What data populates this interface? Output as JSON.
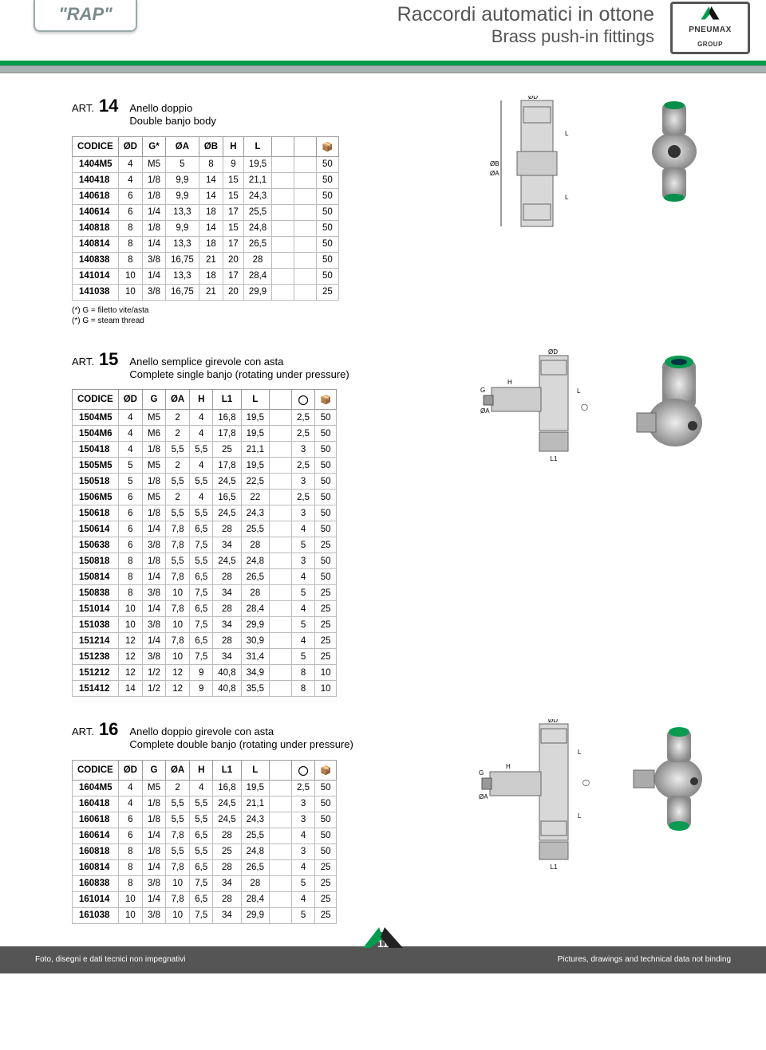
{
  "header": {
    "series": "\"RAP\"",
    "title_it": "Raccordi automatici in ottone",
    "title_en": "Brass push-in fittings",
    "brand_top": "PNEUMAX",
    "brand_bot": "GROUP"
  },
  "art14": {
    "label": "ART.",
    "num": "14",
    "desc_it": "Anello doppio",
    "desc_en": "Double banjo body",
    "cols": [
      "CODICE",
      "ØD",
      "G*",
      "ØA",
      "ØB",
      "H",
      "L",
      "",
      "",
      "📦"
    ],
    "rows": [
      [
        "1404M5",
        "4",
        "M5",
        "5",
        "8",
        "9",
        "19,5",
        "",
        "",
        "50"
      ],
      [
        "140418",
        "4",
        "1/8",
        "9,9",
        "14",
        "15",
        "21,1",
        "",
        "",
        "50"
      ],
      [
        "140618",
        "6",
        "1/8",
        "9,9",
        "14",
        "15",
        "24,3",
        "",
        "",
        "50"
      ],
      [
        "140614",
        "6",
        "1/4",
        "13,3",
        "18",
        "17",
        "25,5",
        "",
        "",
        "50"
      ],
      [
        "140818",
        "8",
        "1/8",
        "9,9",
        "14",
        "15",
        "24,8",
        "",
        "",
        "50"
      ],
      [
        "140814",
        "8",
        "1/4",
        "13,3",
        "18",
        "17",
        "26,5",
        "",
        "",
        "50"
      ],
      [
        "140838",
        "8",
        "3/8",
        "16,75",
        "21",
        "20",
        "28",
        "",
        "",
        "50"
      ],
      [
        "141014",
        "10",
        "1/4",
        "13,3",
        "18",
        "17",
        "28,4",
        "",
        "",
        "50"
      ],
      [
        "141038",
        "10",
        "3/8",
        "16,75",
        "21",
        "20",
        "29,9",
        "",
        "",
        "25"
      ]
    ],
    "note1": "(*) G = filetto vite/asta",
    "note2": "(*) G = steam thread"
  },
  "art15": {
    "label": "ART.",
    "num": "15",
    "desc_it": "Anello semplice girevole con asta",
    "desc_en": "Complete single banjo (rotating under pressure)",
    "cols": [
      "CODICE",
      "ØD",
      "G",
      "ØA",
      "H",
      "L1",
      "L",
      "",
      "◯",
      "📦"
    ],
    "rows": [
      [
        "1504M5",
        "4",
        "M5",
        "2",
        "4",
        "16,8",
        "19,5",
        "",
        "2,5",
        "50"
      ],
      [
        "1504M6",
        "4",
        "M6",
        "2",
        "4",
        "17,8",
        "19,5",
        "",
        "2,5",
        "50"
      ],
      [
        "150418",
        "4",
        "1/8",
        "5,5",
        "5,5",
        "25",
        "21,1",
        "",
        "3",
        "50"
      ],
      [
        "1505M5",
        "5",
        "M5",
        "2",
        "4",
        "17,8",
        "19,5",
        "",
        "2,5",
        "50"
      ],
      [
        "150518",
        "5",
        "1/8",
        "5,5",
        "5,5",
        "24,5",
        "22,5",
        "",
        "3",
        "50"
      ],
      [
        "1506M5",
        "6",
        "M5",
        "2",
        "4",
        "16,5",
        "22",
        "",
        "2,5",
        "50"
      ],
      [
        "150618",
        "6",
        "1/8",
        "5,5",
        "5,5",
        "24,5",
        "24,3",
        "",
        "3",
        "50"
      ],
      [
        "150614",
        "6",
        "1/4",
        "7,8",
        "6,5",
        "28",
        "25,5",
        "",
        "4",
        "50"
      ],
      [
        "150638",
        "6",
        "3/8",
        "7,8",
        "7,5",
        "34",
        "28",
        "",
        "5",
        "25"
      ],
      [
        "150818",
        "8",
        "1/8",
        "5,5",
        "5,5",
        "24,5",
        "24,8",
        "",
        "3",
        "50"
      ],
      [
        "150814",
        "8",
        "1/4",
        "7,8",
        "6,5",
        "28",
        "26,5",
        "",
        "4",
        "50"
      ],
      [
        "150838",
        "8",
        "3/8",
        "10",
        "7,5",
        "34",
        "28",
        "",
        "5",
        "25"
      ],
      [
        "151014",
        "10",
        "1/4",
        "7,8",
        "6,5",
        "28",
        "28,4",
        "",
        "4",
        "25"
      ],
      [
        "151038",
        "10",
        "3/8",
        "10",
        "7,5",
        "34",
        "29,9",
        "",
        "5",
        "25"
      ],
      [
        "151214",
        "12",
        "1/4",
        "7,8",
        "6,5",
        "28",
        "30,9",
        "",
        "4",
        "25"
      ],
      [
        "151238",
        "12",
        "3/8",
        "10",
        "7,5",
        "34",
        "31,4",
        "",
        "5",
        "25"
      ],
      [
        "151212",
        "12",
        "1/2",
        "12",
        "9",
        "40,8",
        "34,9",
        "",
        "8",
        "10"
      ],
      [
        "151412",
        "14",
        "1/2",
        "12",
        "9",
        "40,8",
        "35,5",
        "",
        "8",
        "10"
      ]
    ]
  },
  "art16": {
    "label": "ART.",
    "num": "16",
    "desc_it": "Anello doppio girevole con asta",
    "desc_en": "Complete double banjo (rotating under pressure)",
    "cols": [
      "CODICE",
      "ØD",
      "G",
      "ØA",
      "H",
      "L1",
      "L",
      "",
      "◯",
      "📦"
    ],
    "rows": [
      [
        "1604M5",
        "4",
        "M5",
        "2",
        "4",
        "16,8",
        "19,5",
        "",
        "2,5",
        "50"
      ],
      [
        "160418",
        "4",
        "1/8",
        "5,5",
        "5,5",
        "24,5",
        "21,1",
        "",
        "3",
        "50"
      ],
      [
        "160618",
        "6",
        "1/8",
        "5,5",
        "5,5",
        "24,5",
        "24,3",
        "",
        "3",
        "50"
      ],
      [
        "160614",
        "6",
        "1/4",
        "7,8",
        "6,5",
        "28",
        "25,5",
        "",
        "4",
        "50"
      ],
      [
        "160818",
        "8",
        "1/8",
        "5,5",
        "5,5",
        "25",
        "24,8",
        "",
        "3",
        "50"
      ],
      [
        "160814",
        "8",
        "1/4",
        "7,8",
        "6,5",
        "28",
        "26,5",
        "",
        "4",
        "25"
      ],
      [
        "160838",
        "8",
        "3/8",
        "10",
        "7,5",
        "34",
        "28",
        "",
        "5",
        "25"
      ],
      [
        "161014",
        "10",
        "1/4",
        "7,8",
        "6,5",
        "28",
        "28,4",
        "",
        "4",
        "25"
      ],
      [
        "161038",
        "10",
        "3/8",
        "10",
        "7,5",
        "34",
        "29,9",
        "",
        "5",
        "25"
      ]
    ]
  },
  "footer": {
    "left": "Foto, disegni e dati tecnici non impegnativi",
    "right": "Pictures, drawings and technical data not binding",
    "page": "11"
  },
  "colors": {
    "accent": "#009b4d",
    "grey": "#a9b3b3",
    "dark": "#555555"
  }
}
